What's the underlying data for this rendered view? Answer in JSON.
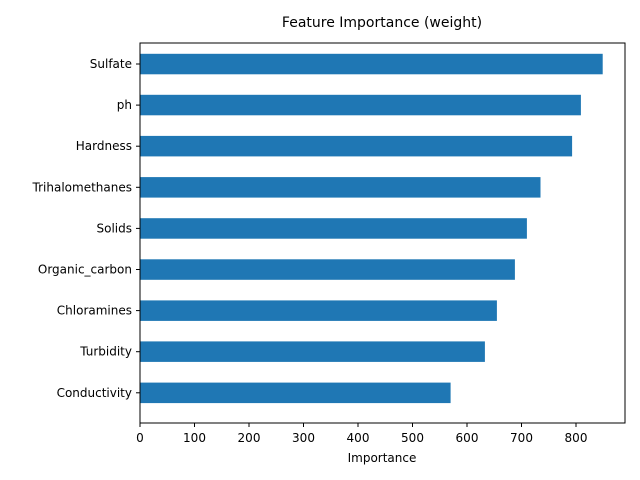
{
  "chart_data": {
    "type": "bar",
    "orientation": "horizontal",
    "title": "Feature Importance (weight)",
    "xlabel": "Importance",
    "ylabel": "",
    "categories": [
      "Sulfate",
      "ph",
      "Hardness",
      "Trihalomethanes",
      "Solids",
      "Organic_carbon",
      "Chloramines",
      "Turbidity",
      "Conductivity"
    ],
    "values": [
      849,
      809,
      793,
      735,
      710,
      688,
      655,
      633,
      570
    ],
    "xlim": [
      0,
      890
    ],
    "xticks": [
      0,
      100,
      200,
      300,
      400,
      500,
      600,
      700,
      800
    ],
    "bar_color": "#1f77b4",
    "grid": false,
    "legend": "none"
  }
}
